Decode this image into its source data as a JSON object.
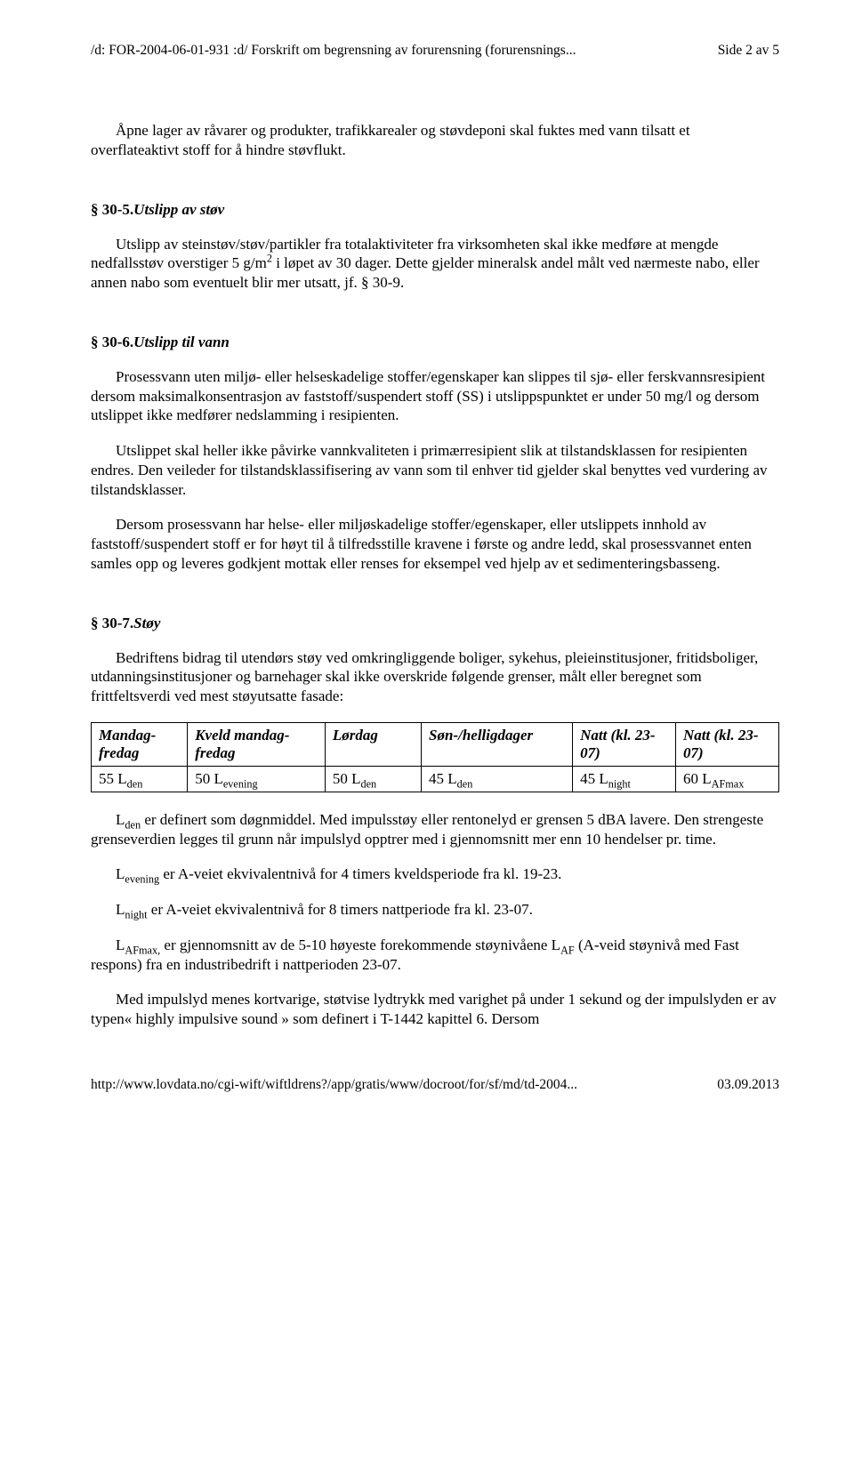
{
  "header": {
    "left": "/d: FOR-2004-06-01-931 :d/ Forskrift om begrensning av forurensning (forurensnings...",
    "right": "Side 2 av 5"
  },
  "intro_para": "Åpne lager av råvarer og produkter, trafikkarealer og støvdeponi skal fuktes med vann tilsatt et overflateaktivt stoff for å hindre støvflukt.",
  "s30_5": {
    "heading_num": "§ 30-5.",
    "heading_title": "Utslipp av støv",
    "para_pre": "Utslipp av steinstøv/støv/partikler fra totalaktiviteter fra virksomheten skal ikke medføre at mengde nedfallsstøv overstiger 5 g/m",
    "para_exp": "2",
    "para_post": " i løpet av 30 dager. Dette gjelder mineralsk andel målt ved nærmeste nabo, eller annen nabo som eventuelt blir mer utsatt, jf. § 30-9."
  },
  "s30_6": {
    "heading_num": "§ 30-6.",
    "heading_title": "Utslipp til vann",
    "p1": "Prosessvann uten miljø- eller helseskadelige stoffer/egenskaper kan slippes til sjø- eller ferskvannsresipient dersom maksimalkonsentrasjon av faststoff/suspendert stoff (SS) i utslippspunktet er under 50 mg/l og dersom utslippet ikke medfører nedslamming i resipienten.",
    "p2": "Utslippet skal heller ikke påvirke vannkvaliteten i primærresipient slik at tilstandsklassen for resipienten endres. Den veileder for tilstandsklassifisering av vann som til enhver tid gjelder skal benyttes ved vurdering av tilstandsklasser.",
    "p3": "Dersom prosessvann har helse- eller miljøskadelige stoffer/egenskaper, eller utslippets innhold av faststoff/suspendert stoff er for høyt til å tilfredsstille kravene i første og andre ledd, skal prosessvannet enten samles opp og leveres godkjent mottak eller renses for eksempel ved hjelp av et sedimenteringsbasseng."
  },
  "s30_7": {
    "heading_num": "§ 30-7.",
    "heading_title": "Støy",
    "p1": "Bedriftens bidrag til utendørs støy ved omkringliggende boliger, sykehus, pleieinstitusjoner, fritidsboliger, utdanningsinstitusjoner og barnehager skal ikke overskride følgende grenser, målt eller beregnet som frittfeltsverdi ved mest støyutsatte fasade:",
    "table": {
      "headers": [
        "Mandag-fredag",
        "Kveld mandag-fredag",
        "Lørdag",
        "Søn-/helligdager",
        "Natt (kl. 23-07)",
        "Natt (kl. 23-07)"
      ],
      "row": [
        {
          "val": "55 L",
          "sub": "den"
        },
        {
          "val": "50 L",
          "sub": "evening"
        },
        {
          "val": "50 L",
          "sub": "den"
        },
        {
          "val": "45 L",
          "sub": "den"
        },
        {
          "val": "45 L",
          "sub": "night"
        },
        {
          "val": "60 L",
          "sub": "AFmax"
        }
      ],
      "col_widths": [
        "14%",
        "20%",
        "14%",
        "22%",
        "15%",
        "15%"
      ]
    },
    "p2_pre": "L",
    "p2_sub": "den",
    "p2_post": " er definert som døgnmiddel. Med impulsstøy eller rentonelyd er grensen 5 dBA lavere. Den strengeste grenseverdien legges til grunn når impulslyd opptrer med i gjennomsnitt mer enn 10 hendelser pr. time.",
    "p3_pre": "L",
    "p3_sub": "evening",
    "p3_post": " er A-veiet ekvivalentnivå for 4 timers kveldsperiode fra kl. 19-23.",
    "p4_pre": "L",
    "p4_sub": "night",
    "p4_post": " er A-veiet ekvivalentnivå for 8 timers nattperiode fra kl. 23-07.",
    "p5_pre": "L",
    "p5_sub1": "AFmax,",
    "p5_mid": " er gjennomsnitt av de 5-10 høyeste forekommende støynivåene L",
    "p5_sub2": "AF",
    "p5_post": " (A-veid støynivå med Fast respons) fra en industribedrift i nattperioden 23-07.",
    "p6": "Med impulslyd menes kortvarige, støtvise lydtrykk med varighet på under 1 sekund og der impulslyden er av typen« highly impulsive sound » som definert i T-1442 kapittel 6. Dersom"
  },
  "footer": {
    "left": "http://www.lovdata.no/cgi-wift/wiftldrens?/app/gratis/www/docroot/for/sf/md/td-2004...",
    "right": "03.09.2013"
  }
}
